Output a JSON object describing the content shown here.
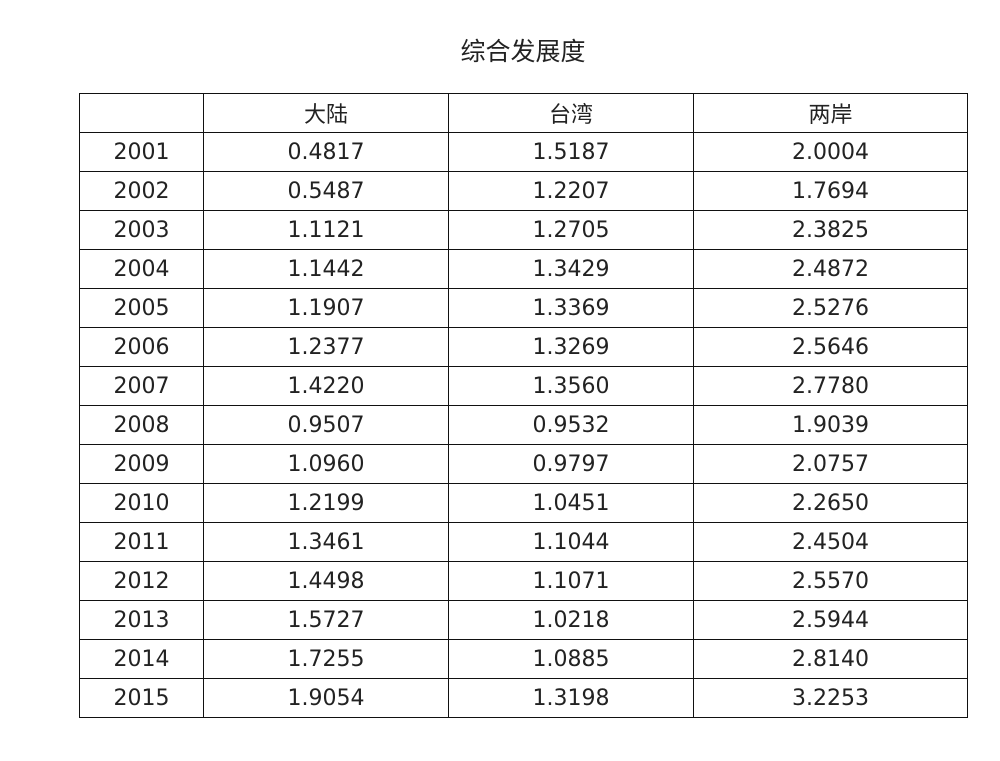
{
  "title": "综合发展度",
  "table": {
    "columns": [
      "大陆",
      "台湾",
      "两岸"
    ],
    "rows": [
      [
        "2001",
        "0.4817",
        "1.5187",
        "2.0004"
      ],
      [
        "2002",
        "0.5487",
        "1.2207",
        "1.7694"
      ],
      [
        "2003",
        "1.1121",
        "1.2705",
        "2.3825"
      ],
      [
        "2004",
        "1.1442",
        "1.3429",
        "2.4872"
      ],
      [
        "2005",
        "1.1907",
        "1.3369",
        "2.5276"
      ],
      [
        "2006",
        "1.2377",
        "1.3269",
        "2.5646"
      ],
      [
        "2007",
        "1.4220",
        "1.3560",
        "2.7780"
      ],
      [
        "2008",
        "0.9507",
        "0.9532",
        "1.9039"
      ],
      [
        "2009",
        "1.0960",
        "0.9797",
        "2.0757"
      ],
      [
        "2010",
        "1.2199",
        "1.0451",
        "2.2650"
      ],
      [
        "2011",
        "1.3461",
        "1.1044",
        "2.4504"
      ],
      [
        "2012",
        "1.4498",
        "1.1071",
        "2.5570"
      ],
      [
        "2013",
        "1.5727",
        "1.0218",
        "2.5944"
      ],
      [
        "2014",
        "1.7255",
        "1.0885",
        "2.8140"
      ],
      [
        "2015",
        "1.9054",
        "1.3198",
        "3.2253"
      ]
    ]
  }
}
